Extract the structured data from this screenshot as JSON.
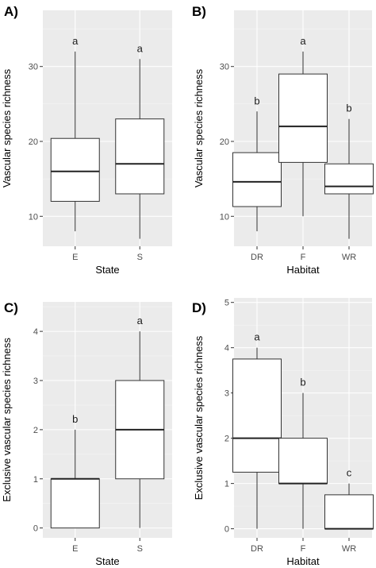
{
  "chart_data": [
    {
      "panel_label": "A)",
      "type": "box",
      "xlabel": "State",
      "ylabel": "Vascular species richness",
      "ylim": [
        6.0,
        37.5
      ],
      "yticks": [
        10,
        20,
        30
      ],
      "grid": true,
      "categories": [
        "E",
        "S"
      ],
      "boxes": [
        {
          "category": "E",
          "min": 8,
          "q1": 12,
          "median": 16,
          "q3": 20.4,
          "max": 32,
          "letter": "a"
        },
        {
          "category": "S",
          "min": 7,
          "q1": 13,
          "median": 17,
          "q3": 23,
          "max": 31,
          "letter": "a"
        }
      ]
    },
    {
      "panel_label": "B)",
      "type": "box",
      "xlabel": "Habitat",
      "ylabel": "Vascular species richness",
      "ylim": [
        6.0,
        37.5
      ],
      "yticks": [
        10,
        20,
        30
      ],
      "grid": true,
      "categories": [
        "DR",
        "F",
        "WR"
      ],
      "boxes": [
        {
          "category": "DR",
          "min": 8,
          "q1": 11.3,
          "median": 14.6,
          "q3": 18.5,
          "max": 24,
          "letter": "b"
        },
        {
          "category": "F",
          "min": 10,
          "q1": 17.2,
          "median": 22,
          "q3": 29,
          "max": 32,
          "letter": "a"
        },
        {
          "category": "WR",
          "min": 7,
          "q1": 13,
          "median": 14,
          "q3": 17,
          "max": 23,
          "letter": "b"
        }
      ]
    },
    {
      "panel_label": "C)",
      "type": "box",
      "xlabel": "State",
      "ylabel": "Exclusive vascular species richness",
      "ylim": [
        -0.2,
        4.6
      ],
      "yticks": [
        0,
        1,
        2,
        3,
        4
      ],
      "grid": true,
      "categories": [
        "E",
        "S"
      ],
      "boxes": [
        {
          "category": "E",
          "min": 0,
          "q1": 0,
          "median": 1,
          "q3": 1,
          "max": 2,
          "letter": "b"
        },
        {
          "category": "S",
          "min": 0,
          "q1": 1,
          "median": 2,
          "q3": 3,
          "max": 4,
          "letter": "a"
        }
      ]
    },
    {
      "panel_label": "D)",
      "type": "box",
      "xlabel": "Habitat",
      "ylabel": "Exclusive vascular species richness",
      "ylim": [
        -0.2,
        5.1
      ],
      "yticks": [
        0,
        1,
        2,
        3,
        4,
        5
      ],
      "grid": true,
      "categories": [
        "DR",
        "F",
        "WR"
      ],
      "boxes": [
        {
          "category": "DR",
          "min": 0,
          "q1": 1.25,
          "median": 2,
          "q3": 3.75,
          "max": 4,
          "letter": "a"
        },
        {
          "category": "F",
          "min": 0,
          "q1": 1,
          "median": 1,
          "q3": 2,
          "max": 3,
          "letter": "b"
        },
        {
          "category": "WR",
          "min": 0,
          "q1": 0,
          "median": 0,
          "q3": 0.75,
          "max": 1,
          "letter": "c"
        }
      ]
    }
  ]
}
